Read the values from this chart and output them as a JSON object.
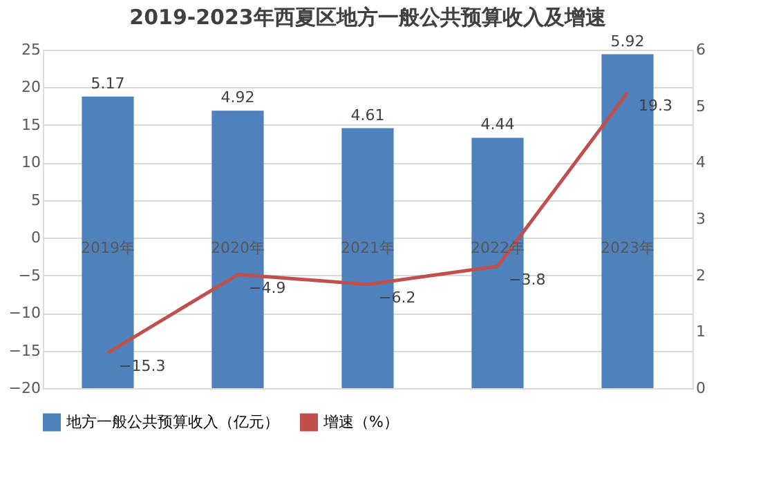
{
  "chart_data": {
    "type": "bar",
    "title": "2019-2023年西夏区地方一般公共预算收入及增速",
    "categories": [
      "2019年",
      "2020年",
      "2021年",
      "2022年",
      "2023年"
    ],
    "series": [
      {
        "name": "地方一般公共预算收入（亿元）",
        "axis": "y2",
        "color": "#4f81bd",
        "values": [
          5.17,
          4.92,
          4.61,
          4.44,
          5.92
        ]
      },
      {
        "name": "增速（%）",
        "type": "line",
        "color": "#c0504d",
        "values": [
          -15.3,
          -4.9,
          -6.2,
          -3.8,
          19.3
        ]
      }
    ],
    "ylim": [
      -20,
      25
    ],
    "yticks": [
      -20,
      -15,
      -10,
      -5,
      0,
      5,
      10,
      15,
      20,
      25
    ],
    "y2lim": [
      0,
      6
    ],
    "y2ticks": [
      0,
      1,
      2,
      3,
      4,
      5,
      6
    ],
    "grid": "y",
    "legend": "bottom",
    "data_labels": true,
    "marker": "none",
    "line_style": "solid"
  }
}
